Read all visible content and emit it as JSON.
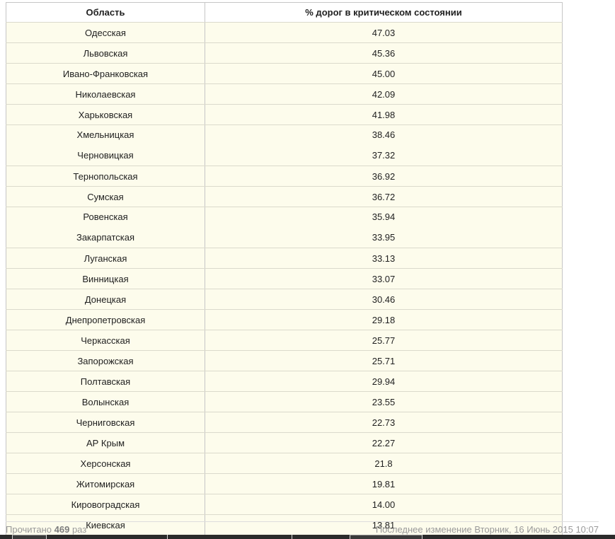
{
  "table": {
    "header": {
      "region": "Область",
      "value": "% дорог в критическом состоянии"
    },
    "rows": [
      {
        "region": "Одесская",
        "value": "47.03"
      },
      {
        "region": "Львовская",
        "value": "45.36"
      },
      {
        "region": "Ивано-Франковская",
        "value": "45.00"
      },
      {
        "region": "Николаевская",
        "value": "42.09"
      },
      {
        "region": "Харьковская",
        "value": "41.98"
      },
      {
        "region": "Хмельницкая",
        "value": "38.46",
        "group": 1
      },
      {
        "region": "Черновицкая",
        "value": "37.32",
        "group": 1
      },
      {
        "region": "Тернопольская",
        "value": "36.92"
      },
      {
        "region": "Сумская",
        "value": "36.72"
      },
      {
        "region": "Ровенская",
        "value": "35.94",
        "group": 2
      },
      {
        "region": "Закарпатская",
        "value": "33.95",
        "group": 2
      },
      {
        "region": "Луганская",
        "value": "33.13"
      },
      {
        "region": "Винницкая",
        "value": "33.07"
      },
      {
        "region": "Донецкая",
        "value": "30.46"
      },
      {
        "region": "Днепропетровская",
        "value": "29.18"
      },
      {
        "region": "Черкасская",
        "value": "25.77"
      },
      {
        "region": "Запорожская",
        "value": "25.71"
      },
      {
        "region": "Полтавская",
        "value": "29.94"
      },
      {
        "region": "Волынская",
        "value": "23.55"
      },
      {
        "region": "Черниговская",
        "value": "22.73"
      },
      {
        "region": "АР Крым",
        "value": "22.27"
      },
      {
        "region": "Херсонская",
        "value": "21.8"
      },
      {
        "region": "Житомирская",
        "value": "19.81"
      },
      {
        "region": "Кировоградская",
        "value": "14.00"
      },
      {
        "region": "Киевская",
        "value": "13.81"
      }
    ]
  },
  "footer": {
    "read_prefix": "Прочитано",
    "read_count": "469",
    "read_suffix": "раз",
    "last_modified": "Последнее изменение Вторник, 16 Июнь 2015 10:07"
  },
  "colors": {
    "row_bg": "#fdfcec",
    "header_bg": "#ffffff",
    "border_outer": "#c6c6c6",
    "border_row": "#dbdacc",
    "text": "#1f1f1f",
    "footer_text": "#9a9a9a",
    "bottom_bar": "#2b2b2b"
  }
}
